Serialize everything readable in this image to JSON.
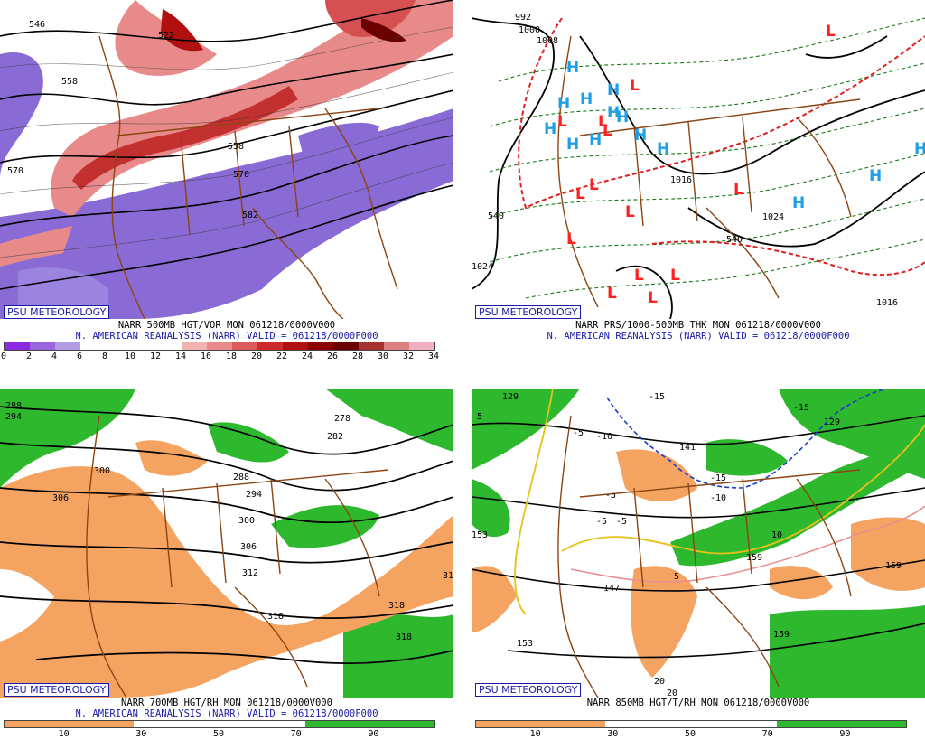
{
  "panels": [
    {
      "id": "vorticity",
      "badge": "PSU METEOROLOGY",
      "caption1": "NARR 500MB HGT/VOR MON 061218/0000V000",
      "caption2": "N. AMERICAN REANALYSIS (NARR) VALID = 061218/0000F000",
      "colorbar_colors": [
        "#8a2be2",
        "#9966dd",
        "#b39ce6",
        "#ffffff",
        "#ffffff",
        "#ffffff",
        "#ffffff",
        "#f2b3b3",
        "#ea8a8a",
        "#dd5a5a",
        "#cc2a2a",
        "#b01010",
        "#8b0000",
        "#6b0000",
        "#a83232",
        "#d98080",
        "#f0b0c0"
      ],
      "colorbar_ticks": [
        "0",
        "2",
        "4",
        "6",
        "8",
        "10",
        "12",
        "14",
        "16",
        "18",
        "20",
        "22",
        "24",
        "26",
        "28",
        "30",
        "32",
        "34"
      ],
      "contour_labels": [
        "546",
        "522",
        "558",
        "570",
        "570",
        "582",
        "558"
      ]
    },
    {
      "id": "pressure",
      "badge": "PSU METEOROLOGY",
      "caption1": "NARR PRS/1000-500MB THK MON 061218/0000V000",
      "caption2": "N. AMERICAN REANALYSIS (NARR) VALID = 061218/0000F000",
      "contour_labels": [
        "992",
        "1000",
        "1008",
        "1016",
        "540",
        "1024",
        "1016",
        "1024",
        "540"
      ],
      "lows": 18,
      "highs": 14
    },
    {
      "id": "rh700",
      "badge": "PSU METEOROLOGY",
      "caption1": "NARR 700MB HGT/RH MON 061218/0000V000",
      "caption2": "N. AMERICAN REANALYSIS (NARR) VALID = 061218/0000F000",
      "colorbar_colors": [
        "#f4a460",
        "#f4a460",
        "#f4a460",
        "#ffffff",
        "#ffffff",
        "#ffffff",
        "#ffffff",
        "#2eb82e",
        "#2eb82e",
        "#2eb82e"
      ],
      "colorbar_ticks": [
        "10",
        "30",
        "50",
        "70",
        "90"
      ],
      "contour_labels": [
        "288",
        "294",
        "300",
        "306",
        "278",
        "282",
        "288",
        "294",
        "300",
        "306",
        "312",
        "318",
        "318",
        "318",
        "312"
      ]
    },
    {
      "id": "temp850",
      "badge": "PSU METEOROLOGY",
      "caption1": "NARR 850MB HGT/T/RH MON 061218/0000V000",
      "colorbar_colors": [
        "#f4a460",
        "#f4a460",
        "#f4a460",
        "#ffffff",
        "#ffffff",
        "#ffffff",
        "#ffffff",
        "#2eb82e",
        "#2eb82e",
        "#2eb82e"
      ],
      "colorbar_ticks": [
        "10",
        "30",
        "50",
        "70",
        "90"
      ],
      "contour_labels": [
        "129",
        "-15",
        "-15",
        "129",
        "-5",
        "-10",
        "141",
        "-15",
        "-10",
        "-5",
        "-5",
        "-5",
        "10",
        "5",
        "153",
        "147",
        "159",
        "153",
        "159",
        "20",
        "20",
        "5",
        "159"
      ]
    }
  ]
}
